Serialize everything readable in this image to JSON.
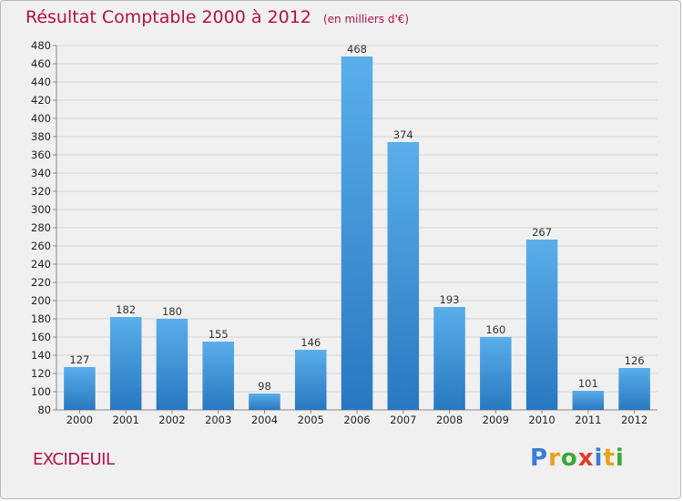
{
  "chart_data": {
    "type": "bar",
    "title": "Résultat Comptable 2000 à 2012",
    "subtitle": "(en milliers d'€)",
    "categories": [
      "2000",
      "2001",
      "2002",
      "2003",
      "2004",
      "2005",
      "2006",
      "2007",
      "2008",
      "2009",
      "2010",
      "2011",
      "2012"
    ],
    "values": [
      127,
      182,
      180,
      155,
      98,
      146,
      468,
      374,
      193,
      160,
      267,
      101,
      126
    ],
    "ylim": [
      80,
      480
    ],
    "yticks": [
      80,
      100,
      120,
      140,
      160,
      180,
      200,
      220,
      240,
      260,
      280,
      300,
      320,
      340,
      360,
      380,
      400,
      420,
      440,
      460,
      480
    ],
    "grid": true,
    "bar_color": "#3d8fd6"
  },
  "commune": "EXCIDEUIL",
  "logo": {
    "letters": [
      "P",
      "r",
      "o",
      "x",
      "i",
      "t",
      "i"
    ],
    "colors": [
      "#3a7bd5",
      "#e8a317",
      "#3aa935",
      "#e23b2e",
      "#3a7bd5",
      "#e8a317",
      "#3aa935"
    ]
  }
}
